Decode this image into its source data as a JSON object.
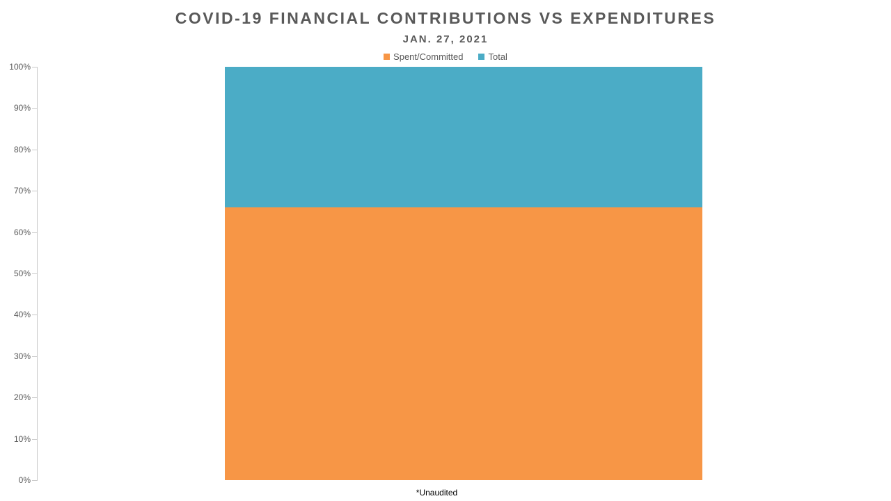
{
  "chart_data": {
    "type": "bar",
    "variant": "100%-stacked-column",
    "title": "COVID-19 FINANCIAL CONTRIBUTIONS VS EXPENDITURES",
    "subtitle": "JAN. 27, 2021",
    "categories": [
      "*Unaudited"
    ],
    "series": [
      {
        "name": "Spent/Committed",
        "color": "#F79646",
        "values": [
          66
        ]
      },
      {
        "name": "Total",
        "color": "#4BACC6",
        "values": [
          34
        ]
      }
    ],
    "xlabel": "",
    "ylabel": "",
    "ylim": [
      0,
      100
    ],
    "y_tick_step": 10,
    "y_tick_labels": [
      "0%",
      "10%",
      "20%",
      "30%",
      "40%",
      "50%",
      "60%",
      "70%",
      "80%",
      "90%",
      "100%"
    ],
    "legend_position": "top",
    "grid": false
  },
  "colors": {
    "title_text": "#595959",
    "axis_text": "#595959",
    "axis_line": "#C9C9C9",
    "footnote_text": "#000000",
    "background": "#FFFFFF"
  }
}
